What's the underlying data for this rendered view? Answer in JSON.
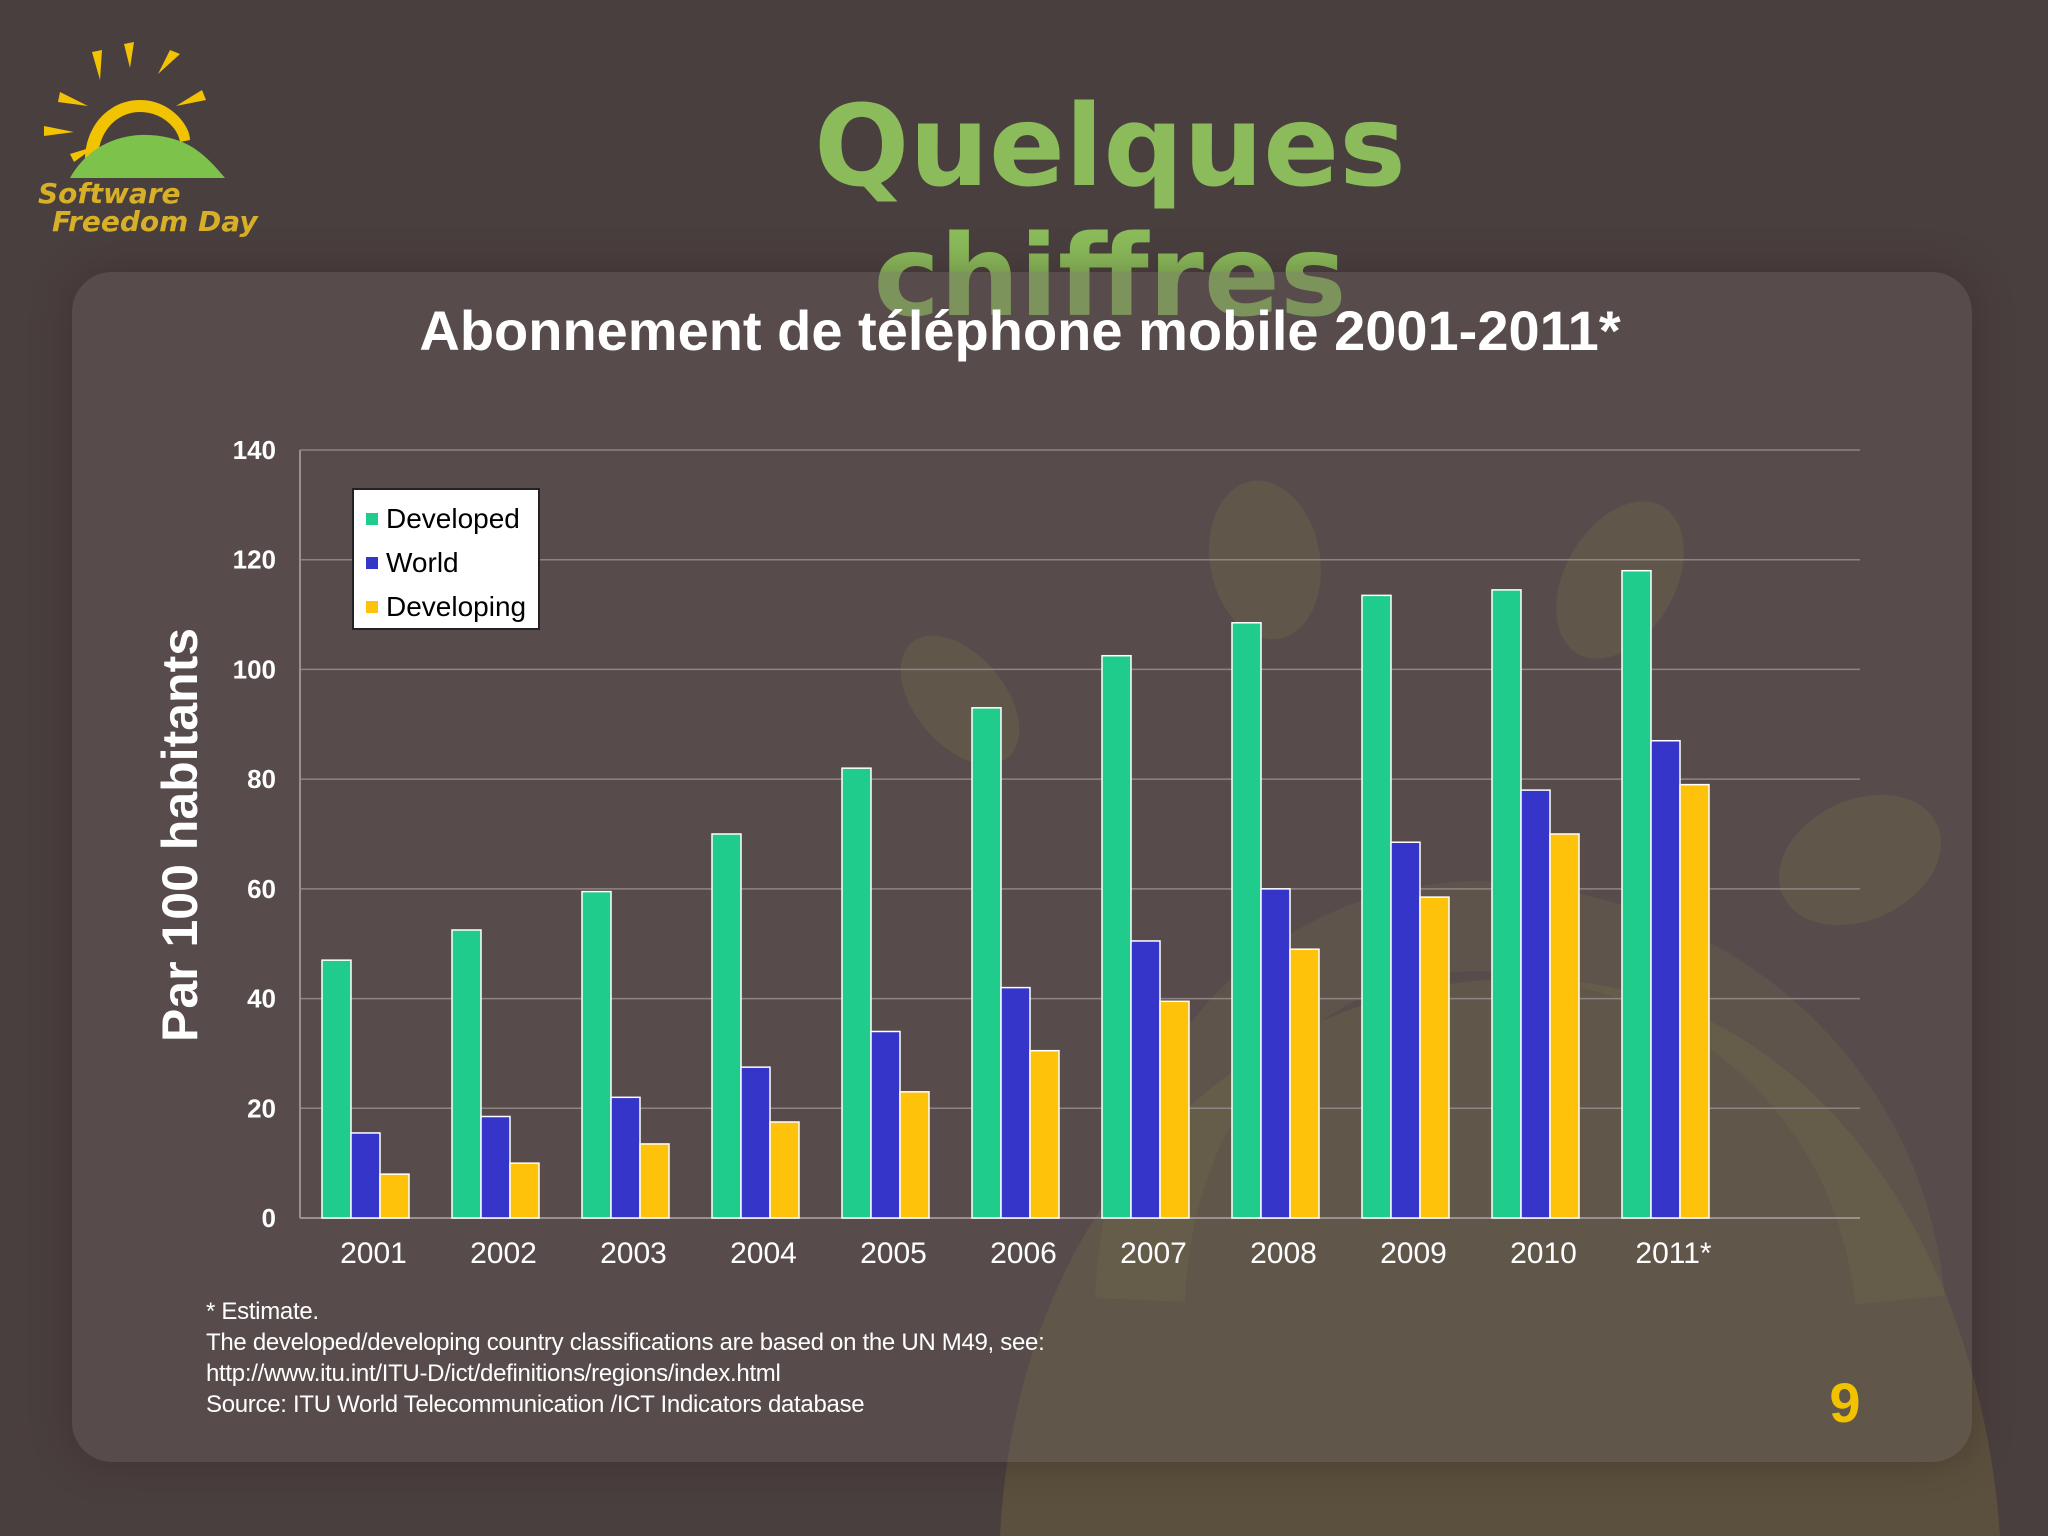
{
  "slide": {
    "title": "Quelques chiffres",
    "page_number": "9",
    "logo_line1": "Software",
    "logo_line2": "Freedom Day"
  },
  "notes": [
    "* Estimate.",
    "The developed/developing country classifications are based on the UN M49, see:",
    "http://www.itu.int/ITU-D/ict/definitions/regions/index.html",
    "Source:  ITU World Telecommunication /ICT Indicators database"
  ],
  "colors": {
    "developed": "#1fcc8c",
    "world": "#3535c9",
    "developing": "#ffc20a",
    "title_green": "#8bbb5a",
    "page_number": "#f2c200"
  },
  "chart_data": {
    "type": "bar",
    "title": "Abonnement de téléphone mobile 2001-2011*",
    "xlabel": "",
    "ylabel": "Par 100 habitants",
    "ylim": [
      0,
      140
    ],
    "yticks": [
      0,
      20,
      40,
      60,
      80,
      100,
      120,
      140
    ],
    "grid": true,
    "legend_position": "top-left",
    "categories": [
      "2001",
      "2002",
      "2003",
      "2004",
      "2005",
      "2006",
      "2007",
      "2008",
      "2009",
      "2010",
      "2011*"
    ],
    "series": [
      {
        "name": "Developed",
        "color": "#1fcc8c",
        "values": [
          47,
          52.5,
          59.5,
          70,
          82,
          93,
          102.5,
          108.5,
          113.5,
          114.5,
          118
        ]
      },
      {
        "name": "World",
        "color": "#3535c9",
        "values": [
          15.5,
          18.5,
          22,
          27.5,
          34,
          42,
          50.5,
          60,
          68.5,
          78,
          87
        ]
      },
      {
        "name": "Developing",
        "color": "#ffc20a",
        "values": [
          8,
          10,
          13.5,
          17.5,
          23,
          30.5,
          39.5,
          49,
          58.5,
          70,
          79
        ]
      }
    ]
  }
}
